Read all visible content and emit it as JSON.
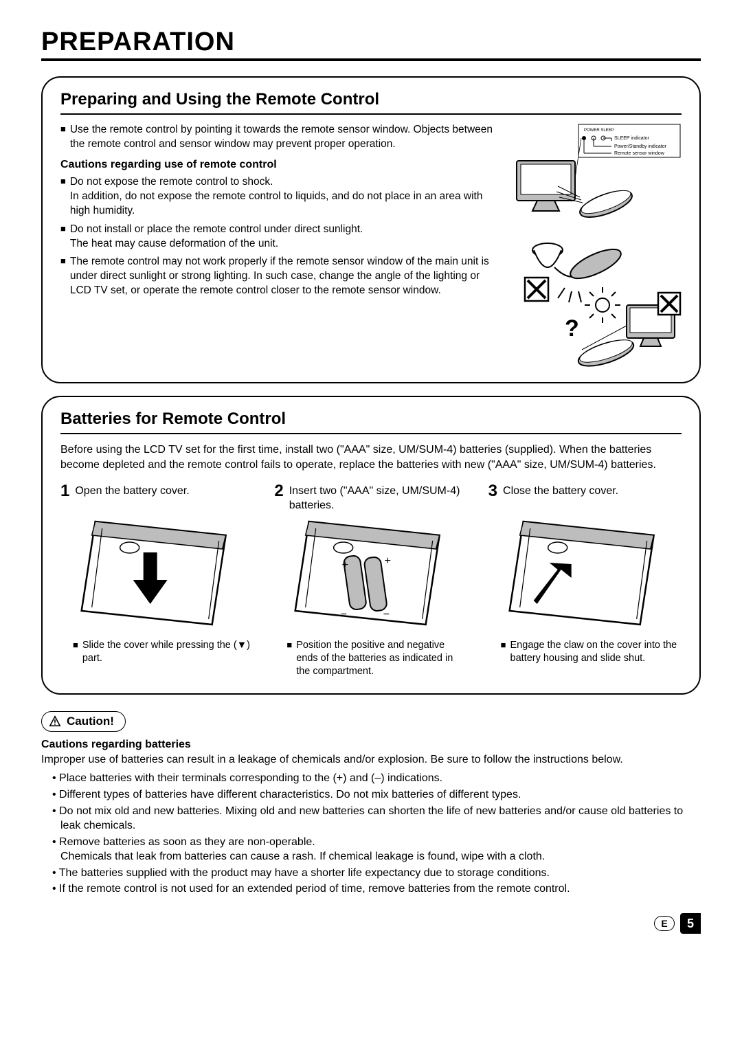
{
  "page": {
    "title": "PREPARATION",
    "language_badge": "E",
    "page_number": "5"
  },
  "section1": {
    "title": "Preparing and Using the Remote Control",
    "intro": "Use the remote control by pointing it towards the remote sensor window. Objects between the remote control and sensor window may prevent proper operation.",
    "cautions_heading": "Cautions regarding use of remote control",
    "caution_items": [
      "Do not expose the remote control to shock.\nIn addition, do not expose the remote control to liquids, and do not place in an area with high humidity.",
      "Do not install or place the remote control under direct sunlight.\nThe heat may cause deformation of the unit.",
      "The remote control may not work properly if the remote sensor window of the main unit is under direct sunlight or strong lighting. In such case, change the angle of the lighting or LCD TV set, or operate the remote control closer to the remote sensor window."
    ],
    "indicator_labels": {
      "power_sleep": "POWER SLEEP",
      "sleep": "SLEEP indicator",
      "standby": "Power/Standby indicator",
      "sensor": "Remote sensor window"
    }
  },
  "section2": {
    "title": "Batteries for Remote Control",
    "intro": "Before using the LCD TV set for the first time, install two (\"AAA\" size, UM/SUM-4) batteries (supplied). When the batteries become depleted and the remote control fails to operate, replace the batteries with new (\"AAA\" size, UM/SUM-4) batteries.",
    "steps": [
      {
        "num": "1",
        "text": "Open the battery cover.",
        "note": "Slide the cover while pressing the (▼) part."
      },
      {
        "num": "2",
        "text": "Insert two (\"AAA\" size, UM/SUM-4) batteries.",
        "note": "Position the positive and negative ends of the batteries as indicated in the compartment."
      },
      {
        "num": "3",
        "text": "Close the battery cover.",
        "note": "Engage the claw on the cover into the battery housing and slide shut."
      }
    ]
  },
  "caution_box": {
    "label": "Caution!",
    "heading": "Cautions regarding batteries",
    "intro": "Improper use of batteries can result in a leakage of chemicals and/or explosion. Be sure to follow the instructions below.",
    "items": [
      "Place batteries with their terminals corresponding to the (+) and (–) indications.",
      "Different types of batteries have different characteristics. Do not mix batteries of different types.",
      "Do not mix old and new batteries. Mixing old and new batteries can shorten the life of new batteries and/or cause old batteries to leak chemicals.",
      "Remove batteries as soon as they are non-operable.\nChemicals that leak from batteries can cause a rash. If chemical leakage is found, wipe with a cloth.",
      "The batteries supplied with the product may have a shorter life expectancy due to storage conditions.",
      "If the remote control is not used for an extended period of time, remove batteries from the remote control."
    ]
  },
  "colors": {
    "text": "#000000",
    "bg": "#ffffff",
    "fill_gray": "#bdbdbd",
    "line": "#000000"
  }
}
